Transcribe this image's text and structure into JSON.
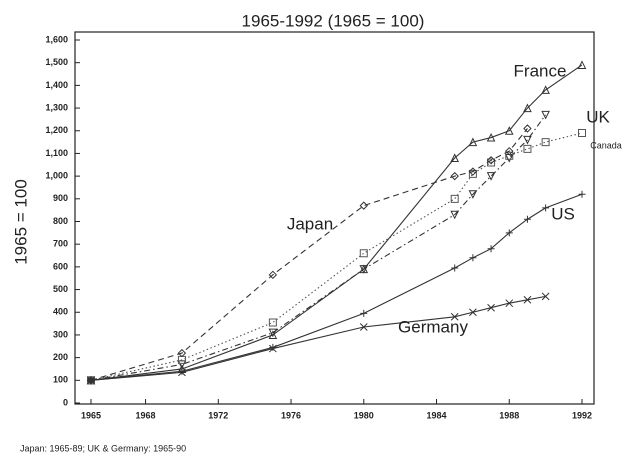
{
  "chart_data": {
    "type": "line",
    "title": "1965-1992 (1965 = 100)",
    "ylabel": "1965 = 100",
    "footnote": "Japan: 1965-89; UK & Germany: 1965-90",
    "xlim": [
      1965,
      1992
    ],
    "xticks": [
      1965,
      1968,
      1972,
      1976,
      1980,
      1984,
      1988,
      1992
    ],
    "ylim": [
      0,
      1600
    ],
    "yticks": [
      0,
      100,
      200,
      300,
      400,
      500,
      600,
      700,
      800,
      900,
      {
        "value": 1000,
        "label": "1,000"
      },
      {
        "value": 1100,
        "label": "1,100"
      },
      {
        "value": 1200,
        "label": "1,200"
      },
      {
        "value": 1300,
        "label": "1,300"
      },
      {
        "value": 1400,
        "label": "1,400"
      },
      {
        "value": 1500,
        "label": "1,500"
      },
      {
        "value": 1600,
        "label": "1,600"
      }
    ],
    "series": [
      {
        "name": "France",
        "color": "#333",
        "linestyle": "solid",
        "marker": "triangle",
        "x": [
          1965,
          1970,
          1975,
          1980,
          1985,
          1986,
          1987,
          1988,
          1989,
          1990,
          1992
        ],
        "values": [
          100,
          150,
          300,
          590,
          1080,
          1150,
          1170,
          1200,
          1300,
          1380,
          1490
        ]
      },
      {
        "name": "UK",
        "color": "#333",
        "linestyle": "dashdot",
        "marker": "triangle-down",
        "x": [
          1965,
          1970,
          1975,
          1980,
          1985,
          1986,
          1987,
          1988,
          1989,
          1990
        ],
        "values": [
          100,
          170,
          310,
          590,
          830,
          920,
          1000,
          1080,
          1160,
          1270
        ]
      },
      {
        "name": "Canada",
        "color": "#555",
        "linestyle": "dotted",
        "marker": "square",
        "x": [
          1965,
          1970,
          1975,
          1980,
          1985,
          1986,
          1987,
          1988,
          1989,
          1990,
          1992
        ],
        "values": [
          100,
          190,
          355,
          660,
          900,
          1010,
          1060,
          1090,
          1120,
          1150,
          1190
        ]
      },
      {
        "name": "Japan",
        "color": "#333",
        "linestyle": "dashed",
        "marker": "diamond",
        "x": [
          1965,
          1970,
          1975,
          1980,
          1985,
          1986,
          1987,
          1988,
          1989
        ],
        "values": [
          100,
          220,
          565,
          870,
          1000,
          1020,
          1070,
          1110,
          1210
        ]
      },
      {
        "name": "US",
        "color": "#333",
        "linestyle": "solid",
        "marker": "plus",
        "x": [
          1965,
          1970,
          1975,
          1980,
          1985,
          1986,
          1987,
          1988,
          1989,
          1990,
          1992
        ],
        "values": [
          100,
          140,
          245,
          395,
          595,
          640,
          680,
          750,
          810,
          860,
          920
        ]
      },
      {
        "name": "Germany",
        "color": "#333",
        "linestyle": "solid",
        "marker": "cross",
        "x": [
          1965,
          1970,
          1975,
          1980,
          1985,
          1986,
          1987,
          1988,
          1989,
          1990
        ],
        "values": [
          100,
          135,
          240,
          335,
          380,
          400,
          420,
          440,
          455,
          470
        ]
      }
    ]
  }
}
